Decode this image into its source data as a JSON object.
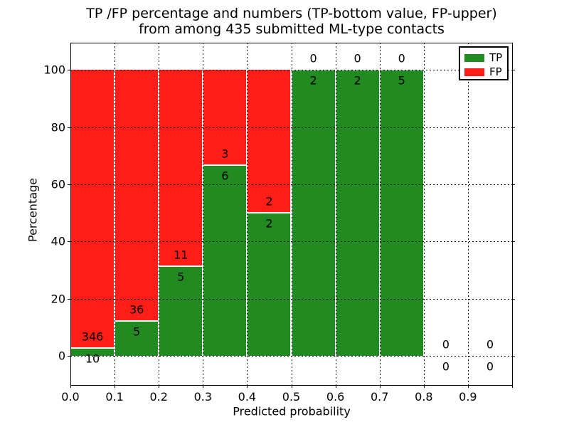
{
  "chart_data": {
    "type": "bar",
    "stacked": true,
    "title_line1": "TP /FP percentage and numbers (TP-bottom value, FP-upper)",
    "title_line2": "from among 435 submitted ML-type contacts",
    "xlabel": "Predicted probability",
    "ylabel": "Percentage",
    "x_ticks": [
      "0.0",
      "0.1",
      "0.2",
      "0.3",
      "0.4",
      "0.5",
      "0.6",
      "0.7",
      "0.8",
      "0.9"
    ],
    "y_ticks": [
      "0",
      "20",
      "40",
      "60",
      "80",
      "100"
    ],
    "xlim": [
      0.0,
      1.0
    ],
    "ylim": [
      -10.2,
      109.5
    ],
    "grid": "dotted-black-above-bars",
    "legend_position": "upper-right",
    "legend": [
      {
        "label": "TP",
        "color": "#218a21"
      },
      {
        "label": "FP",
        "color": "#ff1e17"
      }
    ],
    "total_contacts": 435,
    "bins": [
      {
        "range": [
          0.0,
          0.1
        ],
        "tp": 10,
        "fp": 346,
        "tp_pct": 2.81
      },
      {
        "range": [
          0.1,
          0.2
        ],
        "tp": 5,
        "fp": 36,
        "tp_pct": 12.2
      },
      {
        "range": [
          0.2,
          0.3
        ],
        "tp": 5,
        "fp": 11,
        "tp_pct": 31.25
      },
      {
        "range": [
          0.3,
          0.4
        ],
        "tp": 6,
        "fp": 3,
        "tp_pct": 66.67
      },
      {
        "range": [
          0.4,
          0.5
        ],
        "tp": 2,
        "fp": 2,
        "tp_pct": 50.0
      },
      {
        "range": [
          0.5,
          0.6
        ],
        "tp": 2,
        "fp": 0,
        "tp_pct": 100.0
      },
      {
        "range": [
          0.6,
          0.7
        ],
        "tp": 2,
        "fp": 0,
        "tp_pct": 100.0
      },
      {
        "range": [
          0.7,
          0.8
        ],
        "tp": 5,
        "fp": 0,
        "tp_pct": 100.0
      },
      {
        "range": [
          0.8,
          0.9
        ],
        "tp": 0,
        "fp": 0,
        "tp_pct": 0.0
      },
      {
        "range": [
          0.9,
          1.0
        ],
        "tp": 0,
        "fp": 0,
        "tp_pct": 0.0
      }
    ],
    "colors": {
      "tp": "#218a21",
      "fp": "#ff1e17",
      "edge": "#ffffff",
      "grid": "#000000",
      "text": "#000000",
      "background": "#ffffff"
    }
  }
}
